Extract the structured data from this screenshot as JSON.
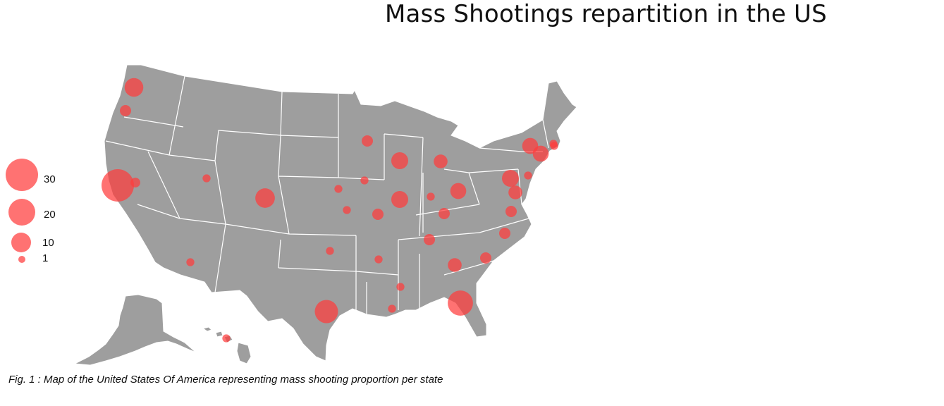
{
  "title": "Mass Shootings repartition in the US",
  "caption": "Fig. 1 : Map of the United States Of America representing mass shooting proportion per state",
  "colors": {
    "land": "#9e9e9e",
    "border": "#ffffff",
    "bubble": "#ff3b3b"
  },
  "legend": {
    "items": [
      {
        "value": 30,
        "label": "30"
      },
      {
        "value": 20,
        "label": "20"
      },
      {
        "value": 10,
        "label": "10"
      },
      {
        "value": 1,
        "label": "1"
      }
    ]
  },
  "chart_data": {
    "type": "bubble-map",
    "region": "United States",
    "size_encoding": "mass shootings per state",
    "values": [
      {
        "state": "WA",
        "value": 11
      },
      {
        "state": "OR",
        "value": 4
      },
      {
        "state": "CA",
        "value": 33
      },
      {
        "state": "NV",
        "value": 3
      },
      {
        "state": "UT",
        "value": 2
      },
      {
        "state": "AZ",
        "value": 2
      },
      {
        "state": "CO",
        "value": 12
      },
      {
        "state": "TX",
        "value": 17
      },
      {
        "state": "OK",
        "value": 2
      },
      {
        "state": "KS",
        "value": 2
      },
      {
        "state": "NE",
        "value": 2
      },
      {
        "state": "MN",
        "value": 4
      },
      {
        "state": "IA",
        "value": 2
      },
      {
        "state": "MO",
        "value": 4
      },
      {
        "state": "AR",
        "value": 2
      },
      {
        "state": "LA",
        "value": 2
      },
      {
        "state": "MS",
        "value": 2
      },
      {
        "state": "WI",
        "value": 9
      },
      {
        "state": "IL",
        "value": 9
      },
      {
        "state": "MI",
        "value": 6
      },
      {
        "state": "IN",
        "value": 2
      },
      {
        "state": "OH",
        "value": 8
      },
      {
        "state": "KY",
        "value": 4
      },
      {
        "state": "TN",
        "value": 4
      },
      {
        "state": "GA",
        "value": 6
      },
      {
        "state": "FL",
        "value": 20
      },
      {
        "state": "SC",
        "value": 4
      },
      {
        "state": "NC",
        "value": 4
      },
      {
        "state": "VA",
        "value": 4
      },
      {
        "state": "MD",
        "value": 6
      },
      {
        "state": "PA",
        "value": 9
      },
      {
        "state": "NJ",
        "value": 2
      },
      {
        "state": "NY",
        "value": 8
      },
      {
        "state": "CT",
        "value": 8
      },
      {
        "state": "RI",
        "value": 2
      },
      {
        "state": "MA",
        "value": 2
      },
      {
        "state": "HI",
        "value": 2
      }
    ]
  }
}
